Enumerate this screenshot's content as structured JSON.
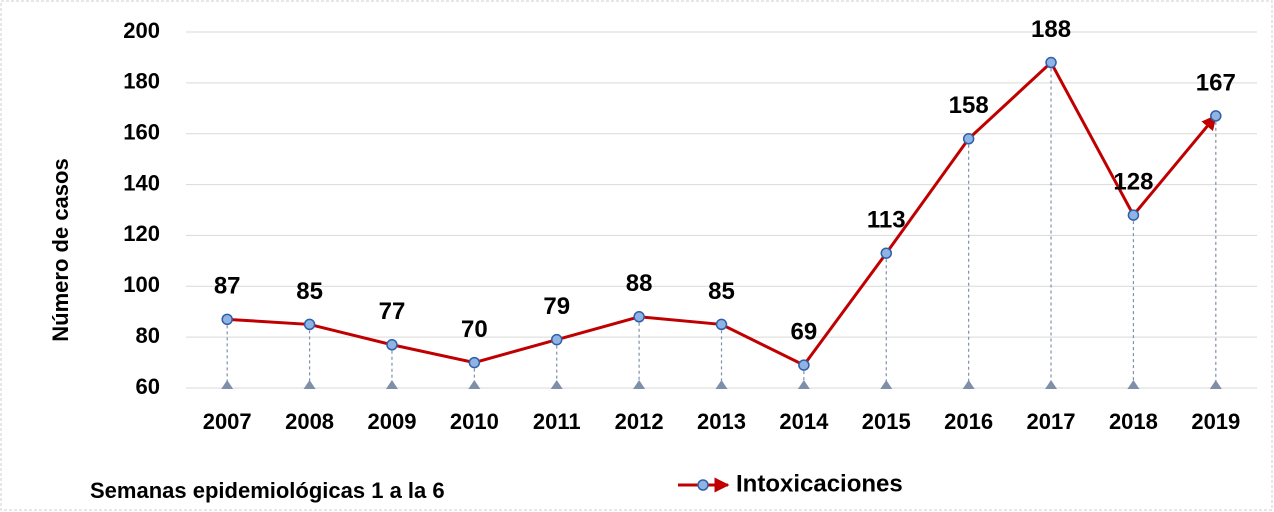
{
  "chart_data": {
    "type": "line",
    "y_label": "Número de casos",
    "note": "Semanas epidemiológicas 1 a la 6",
    "categories": [
      "2007",
      "2008",
      "2009",
      "2010",
      "2011",
      "2012",
      "2013",
      "2014",
      "2015",
      "2016",
      "2017",
      "2018",
      "2019"
    ],
    "series": [
      {
        "name": "Intoxicaciones",
        "color": "#c00000",
        "values": [
          87,
          85,
          77,
          70,
          79,
          88,
          85,
          69,
          113,
          158,
          188,
          128,
          167
        ]
      }
    ],
    "ylim": [
      60,
      200
    ],
    "yticks": [
      60,
      80,
      100,
      120,
      140,
      160,
      180,
      200
    ],
    "grid": true,
    "data_labels": true,
    "legend": "bottom"
  }
}
